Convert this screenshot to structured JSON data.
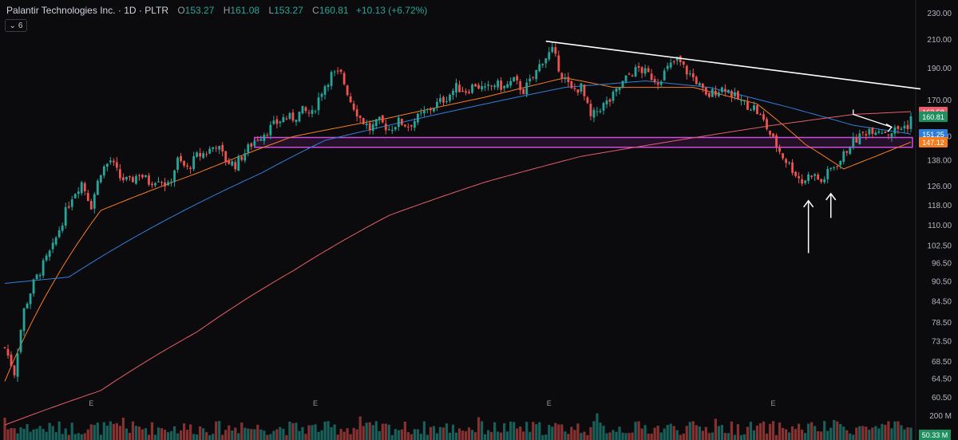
{
  "header": {
    "title": "Palantir Technologies Inc. · 1D · PLTR",
    "open_label": "O",
    "open": "153.27",
    "high_label": "H",
    "high": "161.08",
    "low_label": "L",
    "low": "153.27",
    "close_label": "C",
    "close": "160.81",
    "change": "+10.13 (+6.72%)",
    "indicator_count": "6"
  },
  "price_tags": [
    {
      "value": "163.58",
      "price": 163.58,
      "color": "#e35d6a"
    },
    {
      "value": "160.81",
      "price": 160.81,
      "color": "#1f8f5f"
    },
    {
      "value": "151.25",
      "price": 151.25,
      "color": "#2f7fd8"
    },
    {
      "value": "147.12",
      "price": 147.12,
      "color": "#f57c1f"
    }
  ],
  "volume_axis": {
    "max_label": "200 M",
    "current_label": "50.33 M"
  },
  "earnings_markers": [
    {
      "label": "E",
      "index": 27
    },
    {
      "label": "E",
      "index": 97
    },
    {
      "label": "E",
      "index": 170
    },
    {
      "label": "E",
      "index": 240
    }
  ],
  "chart_data": {
    "type": "candlestick",
    "scale": "log",
    "ylim": [
      58,
      232
    ],
    "y_ticks": [
      "230.00",
      "210.00",
      "190.00",
      "170.00",
      "150.00",
      "138.00",
      "126.00",
      "118.00",
      "110.00",
      "102.50",
      "96.50",
      "90.50",
      "84.50",
      "78.50",
      "73.50",
      "68.50",
      "64.50",
      "60.50"
    ],
    "colors": {
      "up": "#26a69a",
      "down": "#ef5350",
      "ma_short": "#f57c1f",
      "ma_mid": "#2f7fd8",
      "ma_long": "#e35d6a",
      "zone": "#c94fd6",
      "annotation": "#ffffff"
    },
    "close_anchors": [
      [
        0,
        72
      ],
      [
        3,
        66
      ],
      [
        6,
        82
      ],
      [
        9,
        90
      ],
      [
        12,
        96
      ],
      [
        15,
        102
      ],
      [
        18,
        112
      ],
      [
        21,
        122
      ],
      [
        24,
        128
      ],
      [
        27,
        118
      ],
      [
        30,
        133
      ],
      [
        33,
        138
      ],
      [
        36,
        130
      ],
      [
        39,
        128
      ],
      [
        42,
        132
      ],
      [
        45,
        128
      ],
      [
        48,
        130
      ],
      [
        51,
        126
      ],
      [
        54,
        138
      ],
      [
        57,
        134
      ],
      [
        60,
        140
      ],
      [
        63,
        142
      ],
      [
        66,
        146
      ],
      [
        69,
        138
      ],
      [
        72,
        136
      ],
      [
        75,
        142
      ],
      [
        78,
        148
      ],
      [
        81,
        152
      ],
      [
        84,
        156
      ],
      [
        87,
        160
      ],
      [
        90,
        160
      ],
      [
        93,
        164
      ],
      [
        96,
        162
      ],
      [
        99,
        176
      ],
      [
        102,
        186
      ],
      [
        105,
        186
      ],
      [
        108,
        170
      ],
      [
        111,
        160
      ],
      [
        114,
        154
      ],
      [
        117,
        158
      ],
      [
        120,
        154
      ],
      [
        123,
        158
      ],
      [
        126,
        156
      ],
      [
        129,
        160
      ],
      [
        132,
        164
      ],
      [
        135,
        168
      ],
      [
        138,
        172
      ],
      [
        141,
        178
      ],
      [
        144,
        176
      ],
      [
        147,
        180
      ],
      [
        150,
        176
      ],
      [
        153,
        180
      ],
      [
        156,
        178
      ],
      [
        159,
        182
      ],
      [
        162,
        176
      ],
      [
        165,
        184
      ],
      [
        168,
        196
      ],
      [
        171,
        202
      ],
      [
        174,
        186
      ],
      [
        177,
        176
      ],
      [
        180,
        178
      ],
      [
        183,
        160
      ],
      [
        186,
        166
      ],
      [
        189,
        170
      ],
      [
        192,
        178
      ],
      [
        195,
        186
      ],
      [
        198,
        190
      ],
      [
        201,
        186
      ],
      [
        204,
        182
      ],
      [
        207,
        190
      ],
      [
        210,
        196
      ],
      [
        213,
        188
      ],
      [
        216,
        182
      ],
      [
        219,
        172
      ],
      [
        222,
        176
      ],
      [
        225,
        178
      ],
      [
        228,
        172
      ],
      [
        231,
        168
      ],
      [
        234,
        166
      ],
      [
        237,
        158
      ],
      [
        240,
        148
      ],
      [
        243,
        140
      ],
      [
        246,
        134
      ],
      [
        249,
        128
      ],
      [
        252,
        132
      ],
      [
        255,
        128
      ],
      [
        258,
        134
      ],
      [
        261,
        138
      ],
      [
        264,
        146
      ],
      [
        267,
        150
      ],
      [
        270,
        154
      ],
      [
        273,
        154
      ],
      [
        276,
        152
      ],
      [
        279,
        154
      ],
      [
        282,
        156
      ],
      [
        283,
        160.8
      ]
    ],
    "moving_averages": [
      {
        "period": 20,
        "anchors": [
          [
            0,
            64
          ],
          [
            30,
            116
          ],
          [
            60,
            132
          ],
          [
            90,
            150
          ],
          [
            120,
            160
          ],
          [
            150,
            172
          ],
          [
            175,
            184
          ],
          [
            190,
            178
          ],
          [
            215,
            178
          ],
          [
            235,
            168
          ],
          [
            250,
            146
          ],
          [
            262,
            134
          ],
          [
            272,
            140
          ],
          [
            283,
            147.1
          ]
        ]
      },
      {
        "period": 50,
        "anchors": [
          [
            0,
            90
          ],
          [
            20,
            92
          ],
          [
            50,
            112
          ],
          [
            80,
            132
          ],
          [
            100,
            148
          ],
          [
            125,
            158
          ],
          [
            150,
            168
          ],
          [
            175,
            178
          ],
          [
            200,
            182
          ],
          [
            220,
            178
          ],
          [
            245,
            166
          ],
          [
            265,
            156
          ],
          [
            283,
            151.3
          ]
        ]
      },
      {
        "period": 200,
        "anchors": [
          [
            0,
            55
          ],
          [
            30,
            62
          ],
          [
            60,
            76
          ],
          [
            90,
            94
          ],
          [
            120,
            114
          ],
          [
            150,
            128
          ],
          [
            180,
            140
          ],
          [
            210,
            148
          ],
          [
            240,
            156
          ],
          [
            265,
            162
          ],
          [
            283,
            163.6
          ]
        ]
      }
    ],
    "support_zone": {
      "top": 149.5,
      "bottom": 144.5,
      "start_index": 78
    },
    "trendline": {
      "start": [
        169,
        209
      ],
      "end": [
        286,
        177
      ]
    },
    "annotations": [
      {
        "type": "arrow-up",
        "index": 251,
        "from": 100,
        "to": 120
      },
      {
        "type": "arrow-up",
        "index": 258,
        "from": 113,
        "to": 123
      },
      {
        "type": "short-trend-arrow",
        "from": [
          265,
          162
        ],
        "to": [
          277,
          155
        ]
      }
    ],
    "n_bars": 284
  }
}
